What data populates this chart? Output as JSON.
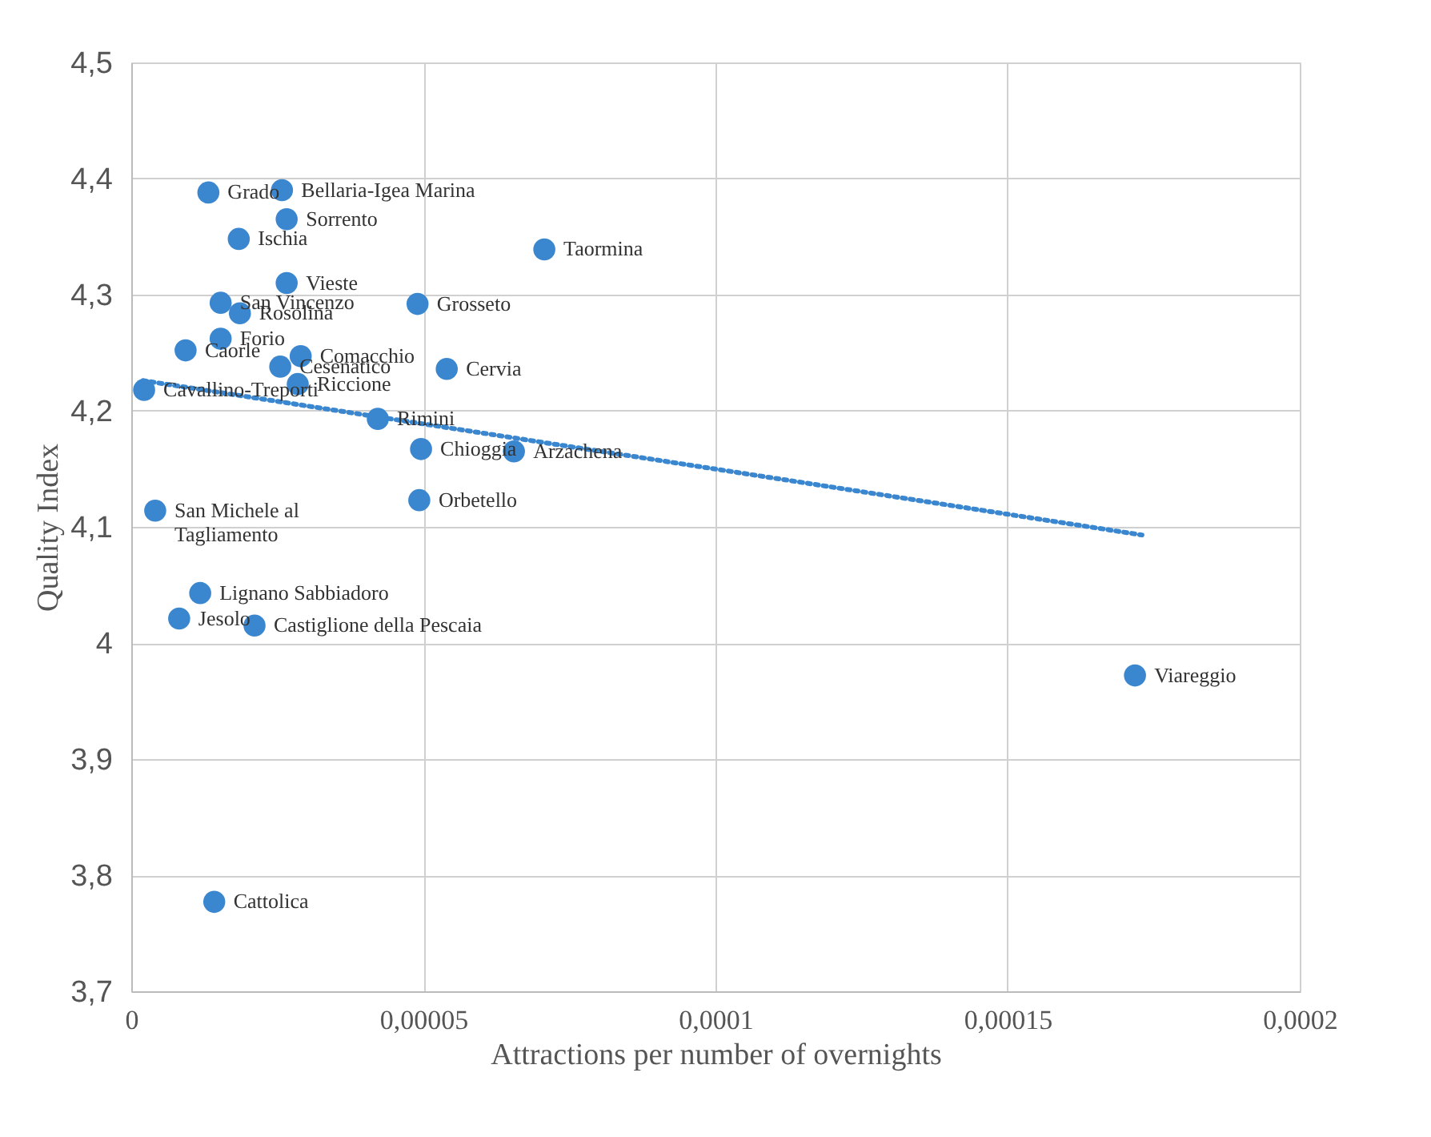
{
  "chart_data": {
    "type": "scatter",
    "xlabel": "Attractions per number of overnights",
    "ylabel": "Quality Index",
    "xlim": [
      0,
      0.0002
    ],
    "ylim": [
      3.7,
      4.5
    ],
    "xticks": [
      {
        "value": 0,
        "label": "0"
      },
      {
        "value": 5e-05,
        "label": "0,00005"
      },
      {
        "value": 0.0001,
        "label": "0,0001"
      },
      {
        "value": 0.00015,
        "label": "0,00015"
      },
      {
        "value": 0.0002,
        "label": "0,0002"
      }
    ],
    "yticks": [
      {
        "value": 3.7,
        "label": "3,7"
      },
      {
        "value": 3.8,
        "label": "3,8"
      },
      {
        "value": 3.9,
        "label": "3,9"
      },
      {
        "value": 4,
        "label": "4"
      },
      {
        "value": 4.1,
        "label": "4,1"
      },
      {
        "value": 4.2,
        "label": "4,2"
      },
      {
        "value": 4.3,
        "label": "4,3"
      },
      {
        "value": 4.4,
        "label": "4,4"
      },
      {
        "value": 4.5,
        "label": "4,5"
      }
    ],
    "grid": true,
    "marker": "circle",
    "series": [
      {
        "color": "#3a87d0",
        "x": [
          1.32e-05,
          2.58e-05,
          2.66e-05,
          1.84e-05,
          7.07e-05,
          2.66e-05,
          1.53e-05,
          1.86e-05,
          4.9e-05,
          1.53e-05,
          9.3e-06,
          2.9e-05,
          2.55e-05,
          5.4e-05,
          2.85e-05,
          2.2e-06,
          4.22e-05,
          4.96e-05,
          6.55e-05,
          4.93e-05,
          4.1e-06,
          1.18e-05,
          8.2e-06,
          2.11e-05,
          0.0001718,
          1.42e-05
        ],
        "values": [
          4.388,
          4.39,
          4.365,
          4.348,
          4.339,
          4.31,
          4.293,
          4.284,
          4.292,
          4.262,
          4.252,
          4.247,
          4.238,
          4.236,
          4.223,
          4.218,
          4.193,
          4.167,
          4.165,
          4.123,
          4.114,
          4.043,
          4.021,
          4.015,
          3.972,
          3.777
        ]
      },
      {
        "type": "line",
        "marker": "none",
        "line_style": "dotted",
        "color": "#3a87d0",
        "x": [
          2e-06,
          0.000173
        ],
        "values": [
          4.226,
          4.093
        ]
      }
    ],
    "annotations": [
      {
        "text": "Grado",
        "x": 1.32e-05,
        "y": 4.388
      },
      {
        "text": "Bellaria-Igea Marina",
        "x": 2.58e-05,
        "y": 4.39
      },
      {
        "text": "Sorrento",
        "x": 2.66e-05,
        "y": 4.365
      },
      {
        "text": "Ischia",
        "x": 1.84e-05,
        "y": 4.348
      },
      {
        "text": "Taormina",
        "x": 7.07e-05,
        "y": 4.339
      },
      {
        "text": "Vieste",
        "x": 2.66e-05,
        "y": 4.31
      },
      {
        "text": "San Vincenzo",
        "x": 1.53e-05,
        "y": 4.293
      },
      {
        "text": "Rosolina",
        "x": 1.86e-05,
        "y": 4.284
      },
      {
        "text": "Grosseto",
        "x": 4.9e-05,
        "y": 4.292
      },
      {
        "text": "Forio",
        "x": 1.53e-05,
        "y": 4.262
      },
      {
        "text": "Caorle",
        "x": 9.3e-06,
        "y": 4.252
      },
      {
        "text": "Comacchio",
        "x": 2.9e-05,
        "y": 4.247
      },
      {
        "text": "Cesenatico",
        "x": 2.55e-05,
        "y": 4.238
      },
      {
        "text": "Cervia",
        "x": 5.4e-05,
        "y": 4.236
      },
      {
        "text": "Riccione",
        "x": 2.85e-05,
        "y": 4.223
      },
      {
        "text": "Cavallino-Treporti",
        "x": 2.2e-06,
        "y": 4.218
      },
      {
        "text": "Rimini",
        "x": 4.22e-05,
        "y": 4.193
      },
      {
        "text": "Chioggia",
        "x": 4.96e-05,
        "y": 4.167
      },
      {
        "text": "Arzachena",
        "x": 6.55e-05,
        "y": 4.165
      },
      {
        "text": "Orbetello",
        "x": 4.93e-05,
        "y": 4.123
      },
      {
        "text": "San Michele al\nTagliamento",
        "x": 4.1e-06,
        "y": 4.114
      },
      {
        "text": "Lignano Sabbiadoro",
        "x": 1.18e-05,
        "y": 4.043
      },
      {
        "text": "Jesolo",
        "x": 8.2e-06,
        "y": 4.021
      },
      {
        "text": "Castiglione della Pescaia",
        "x": 2.11e-05,
        "y": 4.015
      },
      {
        "text": "Viareggio",
        "x": 0.0001718,
        "y": 3.972
      },
      {
        "text": "Cattolica",
        "x": 1.42e-05,
        "y": 3.777
      }
    ]
  }
}
